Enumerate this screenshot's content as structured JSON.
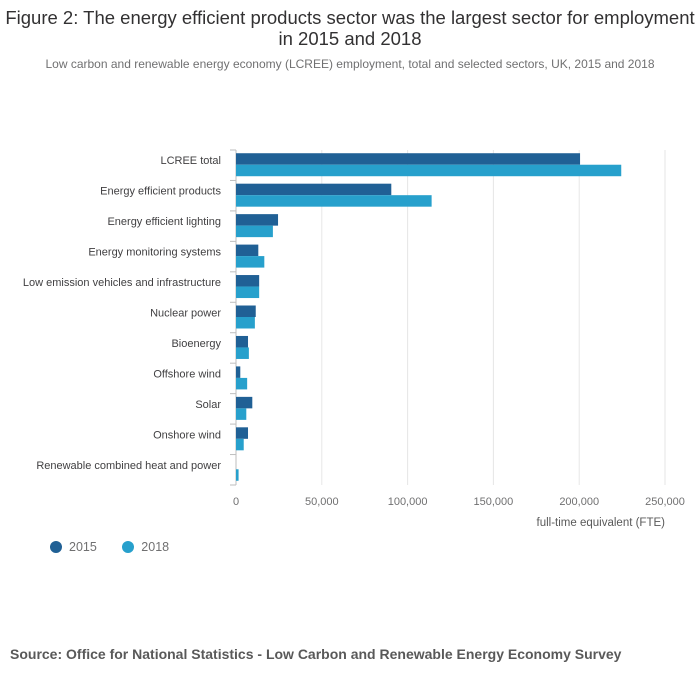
{
  "title": "Figure 2: The energy efficient products sector was the largest sector for employment in 2015 and 2018",
  "subtitle": "Low carbon and renewable energy economy (LCREE) employment, total and selected sectors, UK, 2015 and 2018",
  "source": "Source: Office for National Statistics - Low Carbon and Renewable Energy Economy Survey",
  "colors": {
    "s2015": "#206095",
    "s2018": "#27a0cc",
    "grid": "#e6e6e6",
    "axis": "#bebebe"
  },
  "legend": [
    {
      "name": "2015",
      "color": "#206095"
    },
    {
      "name": "2018",
      "color": "#27a0cc"
    }
  ],
  "chart_data": {
    "type": "bar",
    "orientation": "horizontal",
    "title": "Figure 2: The energy efficient products sector was the largest sector for employment in 2015 and 2018",
    "subtitle": "Low carbon and renewable energy economy (LCREE) employment, total and selected sectors, UK, 2015 and 2018",
    "categories": [
      "LCREE total",
      "Energy efficient products",
      "Energy efficient lighting",
      "Energy monitoring systems",
      "Low emission vehicles and infrastructure",
      "Nuclear power",
      "Bioenergy",
      "Offshore wind",
      "Solar",
      "Onshore wind",
      "Renewable combined heat and power"
    ],
    "series": [
      {
        "name": "2015",
        "values": [
          200500,
          90500,
          24500,
          13000,
          13500,
          11500,
          7000,
          2500,
          9500,
          7000,
          0
        ]
      },
      {
        "name": "2018",
        "values": [
          224500,
          114000,
          21500,
          16500,
          13500,
          11000,
          7500,
          6500,
          6000,
          4500,
          1500
        ]
      }
    ],
    "xlim": [
      0,
      250000
    ],
    "xticks": [
      0,
      50000,
      100000,
      150000,
      200000,
      250000
    ],
    "xtick_labels": [
      "0",
      "50,000",
      "100,000",
      "150,000",
      "200,000",
      "250,000"
    ],
    "xlabel": "full-time equivalent (FTE)",
    "ylabel": "",
    "grid": true,
    "legend_position": "bottom-left"
  }
}
